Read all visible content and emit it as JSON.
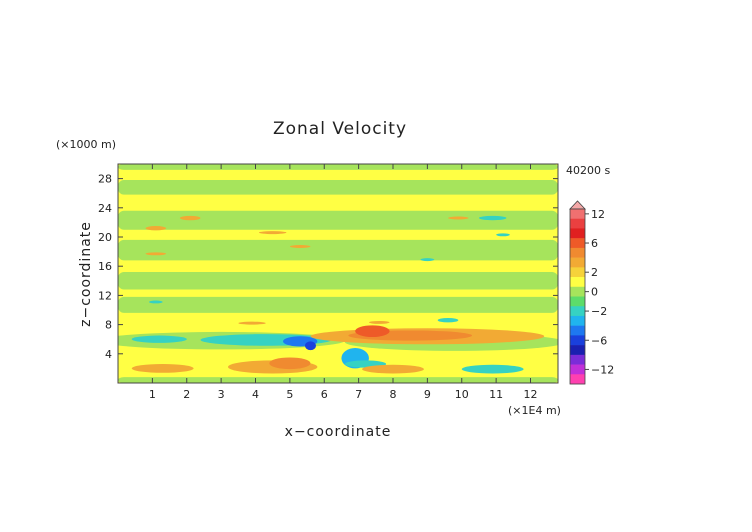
{
  "chart_data": {
    "type": "heatmap",
    "title": "Zonal Velocity",
    "xlabel": "x−coordinate",
    "ylabel": "z−coordinate",
    "x_unit": "(×1E4 m)",
    "y_unit": "(×1000 m)",
    "time_label": "40200 s",
    "xlim": [
      0,
      12.8
    ],
    "ylim": [
      0,
      30
    ],
    "x_ticks": [
      "1",
      "2",
      "3",
      "4",
      "5",
      "6",
      "7",
      "8",
      "9",
      "10",
      "11",
      "12"
    ],
    "y_ticks": [
      "4",
      "8",
      "12",
      "16",
      "20",
      "24",
      "28"
    ],
    "colorbar": {
      "labels": [
        "12",
        "6",
        "2",
        "0",
        "−2",
        "−6",
        "−12"
      ],
      "levels": [
        {
          "value": 14,
          "color": "#f4a8a8"
        },
        {
          "value": 12,
          "color": "#f07070"
        },
        {
          "value": 10,
          "color": "#ea4040"
        },
        {
          "value": 8,
          "color": "#e02020"
        },
        {
          "value": 6,
          "color": "#ee5a28"
        },
        {
          "value": 4,
          "color": "#f08a30"
        },
        {
          "value": 3,
          "color": "#f2aa34"
        },
        {
          "value": 2,
          "color": "#f6d23a"
        },
        {
          "value": 1,
          "color": "#ffff44"
        },
        {
          "value": 0,
          "color": "#a6e45c"
        },
        {
          "value": -1,
          "color": "#5ddc6a"
        },
        {
          "value": -2,
          "color": "#36d2c2"
        },
        {
          "value": -3,
          "color": "#20b4ee"
        },
        {
          "value": -4,
          "color": "#1e78f0"
        },
        {
          "value": -6,
          "color": "#1a40dc"
        },
        {
          "value": -8,
          "color": "#1a20b0"
        },
        {
          "value": -10,
          "color": "#7a2cd8"
        },
        {
          "value": -12,
          "color": "#c030d8"
        },
        {
          "value": -14,
          "color": "#ff40b0"
        }
      ]
    },
    "background_level": 1,
    "features": [
      {
        "kind": "band",
        "x": [
          0,
          12.8
        ],
        "z": [
          25.8,
          27.8
        ],
        "level": 0
      },
      {
        "kind": "band",
        "x": [
          0,
          12.8
        ],
        "z": [
          21.0,
          23.6
        ],
        "level": 0
      },
      {
        "kind": "band",
        "x": [
          0,
          12.8
        ],
        "z": [
          16.8,
          19.6
        ],
        "level": 0
      },
      {
        "kind": "band",
        "x": [
          0,
          12.8
        ],
        "z": [
          12.8,
          15.2
        ],
        "level": 0
      },
      {
        "kind": "band",
        "x": [
          0,
          12.8
        ],
        "z": [
          9.6,
          11.8
        ],
        "level": 0
      },
      {
        "kind": "band",
        "x": [
          0,
          12.8
        ],
        "z": [
          29.2,
          30
        ],
        "level": 0
      },
      {
        "kind": "band",
        "x": [
          0,
          12.8
        ],
        "z": [
          0,
          0.8
        ],
        "level": 0
      },
      {
        "kind": "blob",
        "cx": 3.0,
        "cz": 5.8,
        "rx": 3.6,
        "rz": 1.2,
        "level": 0
      },
      {
        "kind": "blob",
        "cx": 9.8,
        "cz": 5.6,
        "rx": 3.2,
        "rz": 1.2,
        "level": 0
      },
      {
        "kind": "blob",
        "cx": 4.3,
        "cz": 5.9,
        "rx": 1.9,
        "rz": 0.8,
        "level": -2
      },
      {
        "kind": "blob",
        "cx": 1.2,
        "cz": 6.0,
        "rx": 0.8,
        "rz": 0.5,
        "level": -2
      },
      {
        "kind": "blob",
        "cx": 5.3,
        "cz": 5.7,
        "rx": 0.5,
        "rz": 0.7,
        "level": -4
      },
      {
        "kind": "blob",
        "cx": 5.6,
        "cz": 5.1,
        "rx": 0.16,
        "rz": 0.6,
        "level": -6
      },
      {
        "kind": "blob",
        "cx": 6.9,
        "cz": 3.4,
        "rx": 0.4,
        "rz": 1.4,
        "level": -3
      },
      {
        "kind": "blob",
        "cx": 7.2,
        "cz": 2.6,
        "rx": 0.6,
        "rz": 0.5,
        "level": -2
      },
      {
        "kind": "blob",
        "cx": 10.9,
        "cz": 1.9,
        "rx": 0.9,
        "rz": 0.6,
        "level": -2
      },
      {
        "kind": "blob",
        "cx": 9.0,
        "cz": 6.4,
        "rx": 3.4,
        "rz": 1.1,
        "level": 3
      },
      {
        "kind": "blob",
        "cx": 8.5,
        "cz": 6.5,
        "rx": 1.8,
        "rz": 0.7,
        "level": 4
      },
      {
        "kind": "blob",
        "cx": 7.4,
        "cz": 7.1,
        "rx": 0.5,
        "rz": 0.8,
        "level": 6
      },
      {
        "kind": "blob",
        "cx": 4.5,
        "cz": 2.2,
        "rx": 1.3,
        "rz": 0.9,
        "level": 3
      },
      {
        "kind": "blob",
        "cx": 5.0,
        "cz": 2.7,
        "rx": 0.6,
        "rz": 0.8,
        "level": 4
      },
      {
        "kind": "blob",
        "cx": 1.3,
        "cz": 2.0,
        "rx": 0.9,
        "rz": 0.6,
        "level": 3
      },
      {
        "kind": "blob",
        "cx": 8.0,
        "cz": 1.9,
        "rx": 0.9,
        "rz": 0.6,
        "level": 3
      },
      {
        "kind": "blob",
        "cx": 3.9,
        "cz": 8.2,
        "rx": 0.4,
        "rz": 0.2,
        "level": 3
      },
      {
        "kind": "blob",
        "cx": 7.6,
        "cz": 8.3,
        "rx": 0.3,
        "rz": 0.2,
        "level": 3
      },
      {
        "kind": "blob",
        "cx": 2.1,
        "cz": 22.6,
        "rx": 0.3,
        "rz": 0.3,
        "level": 3
      },
      {
        "kind": "blob",
        "cx": 1.1,
        "cz": 21.2,
        "rx": 0.3,
        "rz": 0.3,
        "level": 3
      },
      {
        "kind": "blob",
        "cx": 1.1,
        "cz": 17.7,
        "rx": 0.3,
        "rz": 0.2,
        "level": 3
      },
      {
        "kind": "blob",
        "cx": 4.5,
        "cz": 20.6,
        "rx": 0.4,
        "rz": 0.2,
        "level": 3
      },
      {
        "kind": "blob",
        "cx": 5.3,
        "cz": 18.7,
        "rx": 0.3,
        "rz": 0.2,
        "level": 3
      },
      {
        "kind": "blob",
        "cx": 9.9,
        "cz": 22.6,
        "rx": 0.3,
        "rz": 0.2,
        "level": 3
      },
      {
        "kind": "blob",
        "cx": 10.9,
        "cz": 22.6,
        "rx": 0.4,
        "rz": 0.3,
        "level": -2
      },
      {
        "kind": "blob",
        "cx": 11.2,
        "cz": 20.3,
        "rx": 0.2,
        "rz": 0.2,
        "level": -2
      },
      {
        "kind": "blob",
        "cx": 9.0,
        "cz": 16.9,
        "rx": 0.2,
        "rz": 0.2,
        "level": -2
      },
      {
        "kind": "blob",
        "cx": 1.1,
        "cz": 11.1,
        "rx": 0.2,
        "rz": 0.2,
        "level": -2
      },
      {
        "kind": "blob",
        "cx": 9.6,
        "cz": 8.6,
        "rx": 0.3,
        "rz": 0.3,
        "level": -2
      }
    ]
  }
}
